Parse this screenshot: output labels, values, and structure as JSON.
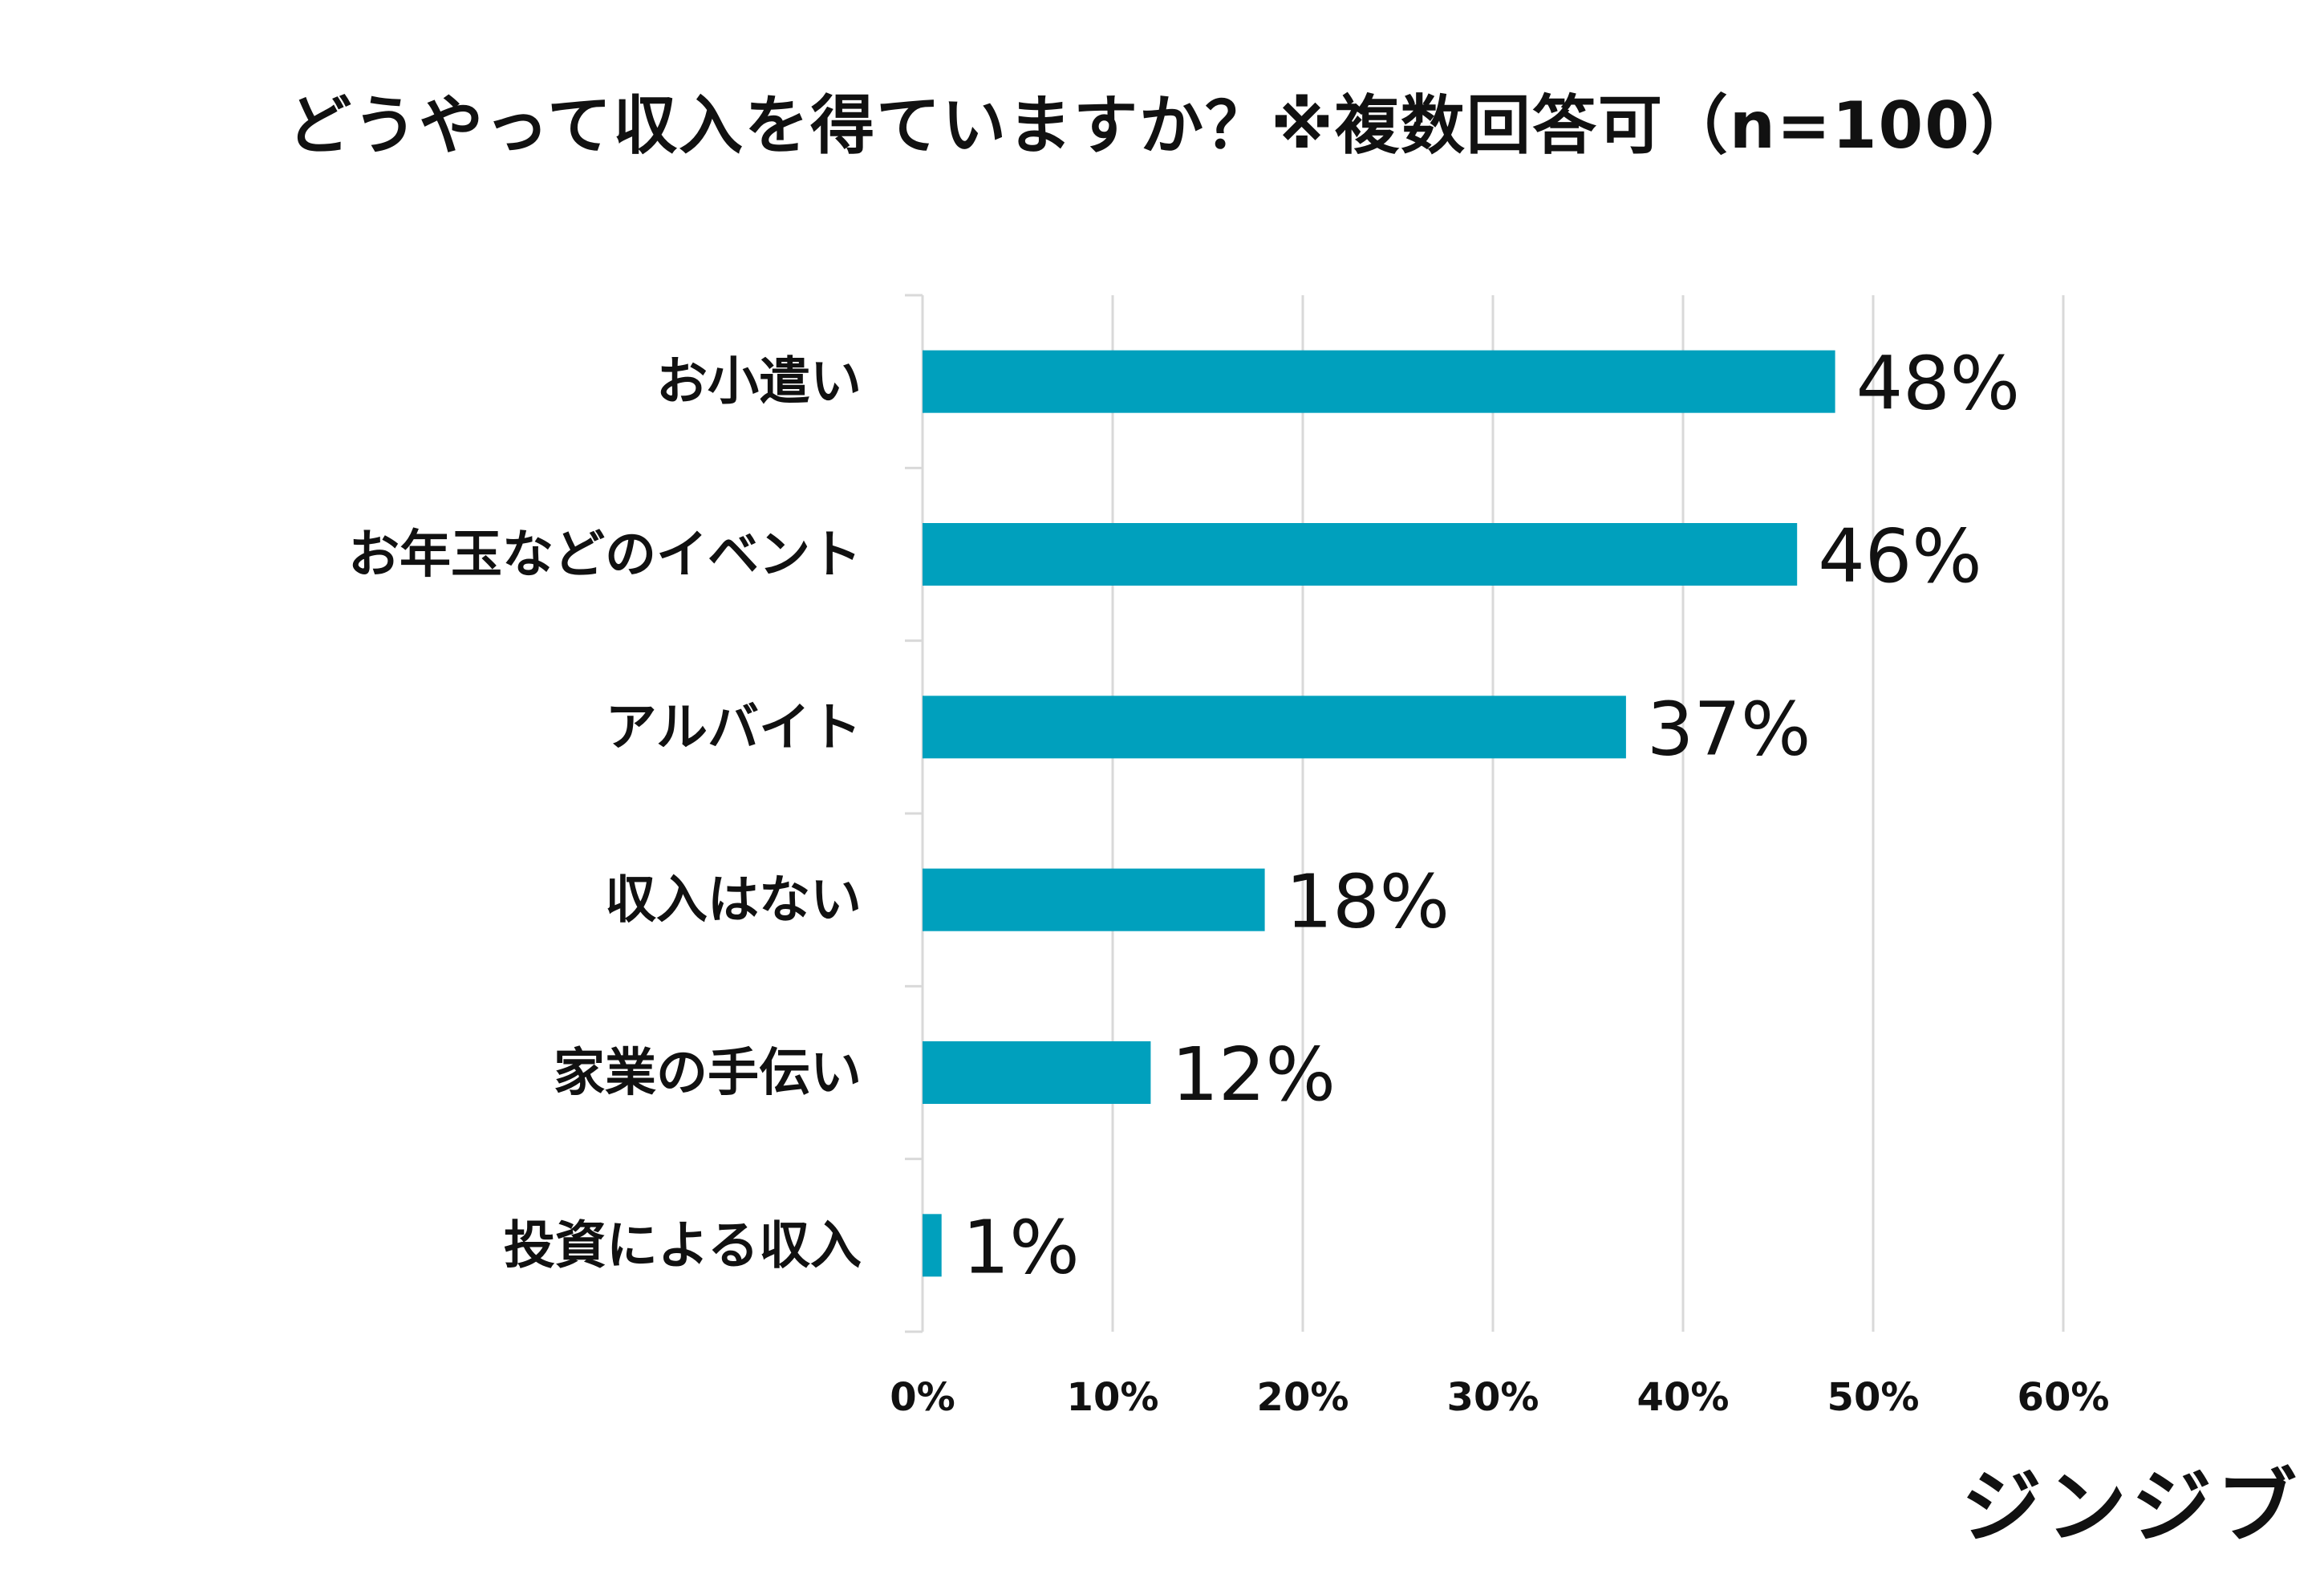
{
  "chart_data": {
    "type": "bar",
    "orientation": "horizontal",
    "title": "どうやって収入を得ていますか？※複数回答可（n=100）",
    "categories": [
      "お小遣い",
      "お年玉などのイベント",
      "アルバイト",
      "収入はない",
      "家業の手伝い",
      "投資による収入"
    ],
    "values": [
      48,
      46,
      37,
      18,
      12,
      1
    ],
    "value_labels": [
      "48%",
      "46%",
      "37%",
      "18%",
      "12%",
      "1%"
    ],
    "xlim": [
      0,
      60
    ],
    "xticks": [
      0,
      10,
      20,
      30,
      40,
      50,
      60
    ],
    "xtick_labels": [
      "0%",
      "10%",
      "20%",
      "30%",
      "40%",
      "50%",
      "60%"
    ],
    "xlabel": "",
    "ylabel": "",
    "grid": true,
    "bar_color": "#00A0BD",
    "grid_color": "#D9D9D9"
  },
  "brand": {
    "name": "ジンジブ"
  }
}
